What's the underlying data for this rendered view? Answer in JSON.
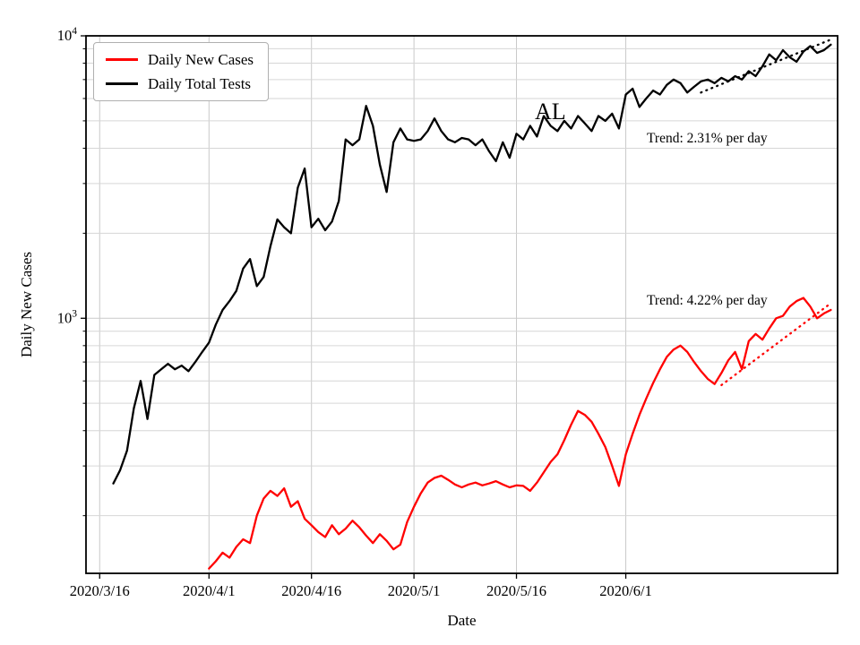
{
  "figure": {
    "background": "#ffffff",
    "state_label": "AL"
  },
  "chart_data": {
    "type": "line",
    "title": "",
    "xlabel": "Date",
    "ylabel": "Daily New Cases",
    "x_unit": "days since 2020/3/16",
    "xlim": [
      -2,
      108
    ],
    "yscale": "log",
    "ylim": [
      125,
      10000
    ],
    "grid": true,
    "legend_position": "upper left",
    "style": {
      "grid_color": "#c9c9c9",
      "minor_grid_color": "#d6d6d6",
      "axis_color": "#000000",
      "red": "#ff0000",
      "black": "#000000"
    },
    "x_ticks": [
      {
        "day": 0,
        "label": "2020/3/16"
      },
      {
        "day": 16,
        "label": "2020/4/1"
      },
      {
        "day": 31,
        "label": "2020/4/16"
      },
      {
        "day": 46,
        "label": "2020/5/1"
      },
      {
        "day": 61,
        "label": "2020/5/16"
      },
      {
        "day": 77,
        "label": "2020/6/1"
      }
    ],
    "y_major_ticks": [
      {
        "value": 1000,
        "base": "10",
        "exponent": "3"
      },
      {
        "value": 10000,
        "base": "10",
        "exponent": "4"
      }
    ],
    "series": [
      {
        "name": "Daily New Cases",
        "color": "#ff0000",
        "start_day": 16,
        "values": [
          130,
          138,
          148,
          142,
          155,
          165,
          160,
          200,
          230,
          245,
          235,
          250,
          215,
          225,
          195,
          185,
          175,
          168,
          185,
          172,
          180,
          192,
          182,
          170,
          160,
          172,
          163,
          152,
          158,
          190,
          215,
          240,
          262,
          272,
          277,
          268,
          258,
          252,
          258,
          262,
          256,
          260,
          265,
          258,
          252,
          256,
          255,
          245,
          262,
          285,
          310,
          330,
          370,
          420,
          470,
          455,
          430,
          390,
          350,
          300,
          255,
          330,
          390,
          455,
          520,
          590,
          660,
          730,
          775,
          800,
          760,
          700,
          650,
          610,
          585,
          640,
          710,
          760,
          660,
          830,
          880,
          840,
          920,
          1000,
          1020,
          1100,
          1150,
          1180,
          1100,
          1000,
          1040,
          1070
        ]
      },
      {
        "name": "Daily Total Tests",
        "color": "#000000",
        "start_day": 2,
        "values": [
          260,
          290,
          340,
          480,
          600,
          440,
          630,
          660,
          690,
          660,
          680,
          650,
          700,
          760,
          820,
          950,
          1070,
          1150,
          1250,
          1500,
          1620,
          1300,
          1400,
          1800,
          2240,
          2100,
          2000,
          2900,
          3390,
          2100,
          2250,
          2050,
          2200,
          2600,
          4300,
          4100,
          4300,
          5650,
          4800,
          3500,
          2800,
          4200,
          4700,
          4300,
          4250,
          4300,
          4600,
          5100,
          4600,
          4300,
          4200,
          4350,
          4300,
          4100,
          4300,
          3900,
          3600,
          4200,
          3700,
          4500,
          4300,
          4800,
          4400,
          5200,
          4800,
          4600,
          5000,
          4700,
          5200,
          4900,
          4600,
          5200,
          5000,
          5300,
          4700,
          6200,
          6500,
          5600,
          6000,
          6400,
          6200,
          6700,
          7000,
          6800,
          6300,
          6600,
          6900,
          7000,
          6800,
          7100,
          6900,
          7200,
          7000,
          7500,
          7200,
          7800,
          8600,
          8200,
          8900,
          8400,
          8100,
          8800,
          9200,
          8700,
          8900,
          9300
        ]
      }
    ],
    "trend_lines": [
      {
        "series": "Daily Total Tests",
        "label": "Trend: 2.31% per day",
        "rate_percent_per_day": 2.31,
        "color": "#000000",
        "start_day": 88,
        "start_value": 6300,
        "end_day": 107,
        "end_value": 9700
      },
      {
        "series": "Daily New Cases",
        "label": "Trend: 4.22% per day",
        "rate_percent_per_day": 4.22,
        "color": "#ff0000",
        "start_day": 91,
        "start_value": 580,
        "end_day": 107,
        "end_value": 1130
      }
    ],
    "annotations": [
      {
        "text": "AL"
      }
    ]
  }
}
